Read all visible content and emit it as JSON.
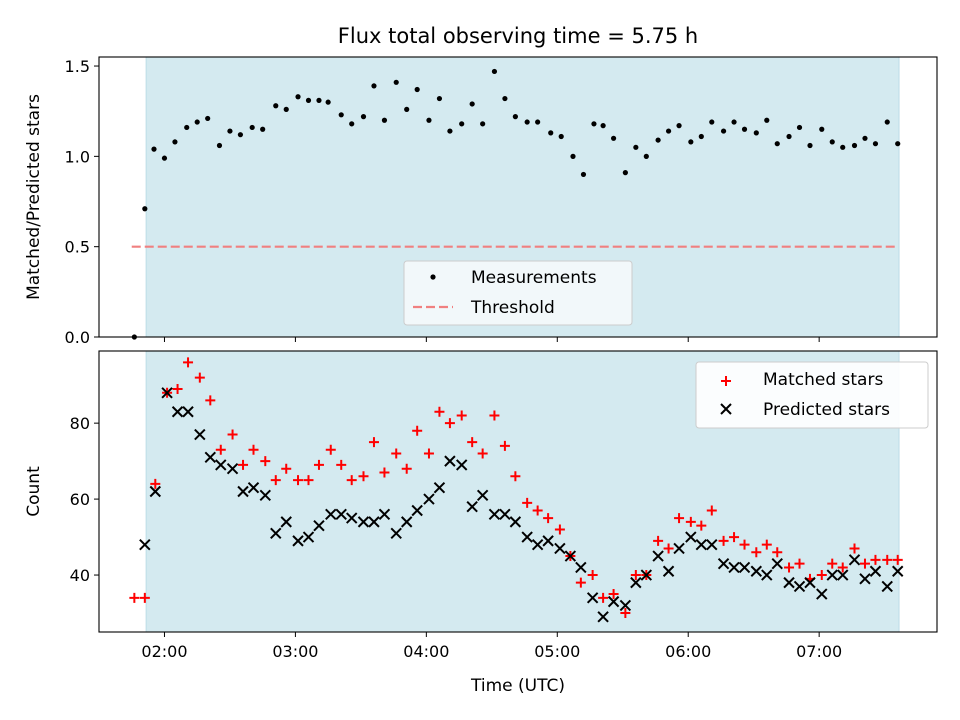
{
  "title": "Flux total observing time = 5.75 h",
  "colors": {
    "background": "#ffffff",
    "shade": "#d4eaf0",
    "threshold": "#f08080",
    "measurement": "#000000",
    "matched": "#ff0000",
    "predicted": "#000000"
  },
  "chart_data": [
    {
      "type": "scatter",
      "ylabel": "Matched/Predicted stars",
      "ylim": [
        0,
        1.55
      ],
      "yticks": [
        0.0,
        0.5,
        1.0,
        1.5
      ],
      "ytick_labels": [
        "0.0",
        "0.5",
        "1.0",
        "1.5"
      ],
      "xlim_hours": [
        1.5,
        7.9
      ],
      "observing_window_hours": [
        1.86,
        7.61
      ],
      "xticks_hours": [
        2,
        3,
        4,
        5,
        6,
        7
      ],
      "legend": {
        "position": "lower-center",
        "entries": [
          "Measurements",
          "Threshold"
        ]
      },
      "threshold": {
        "name": "Threshold",
        "value": 0.5,
        "x_range_hours": [
          1.75,
          7.6
        ]
      },
      "series": [
        {
          "name": "Measurements",
          "marker": "dot",
          "x_hours": [
            1.77,
            1.85,
            1.92,
            2.0,
            2.08,
            2.17,
            2.25,
            2.33,
            2.42,
            2.5,
            2.58,
            2.67,
            2.75,
            2.85,
            2.93,
            3.02,
            3.1,
            3.18,
            3.25,
            3.35,
            3.43,
            3.52,
            3.6,
            3.68,
            3.77,
            3.85,
            3.93,
            4.02,
            4.1,
            4.18,
            4.27,
            4.35,
            4.43,
            4.52,
            4.6,
            4.68,
            4.77,
            4.85,
            4.95,
            5.03,
            5.12,
            5.2,
            5.28,
            5.35,
            5.43,
            5.52,
            5.6,
            5.68,
            5.77,
            5.85,
            5.93,
            6.02,
            6.1,
            6.18,
            6.27,
            6.35,
            6.43,
            6.52,
            6.6,
            6.68,
            6.77,
            6.85,
            6.93,
            7.02,
            7.1,
            7.18,
            7.27,
            7.35,
            7.43,
            7.52,
            7.6
          ],
          "values": [
            0.0,
            0.71,
            1.04,
            0.99,
            1.08,
            1.16,
            1.19,
            1.21,
            1.06,
            1.14,
            1.12,
            1.16,
            1.15,
            1.28,
            1.26,
            1.33,
            1.31,
            1.31,
            1.3,
            1.23,
            1.18,
            1.22,
            1.39,
            1.2,
            1.41,
            1.26,
            1.37,
            1.2,
            1.32,
            1.14,
            1.18,
            1.29,
            1.18,
            1.47,
            1.32,
            1.22,
            1.19,
            1.19,
            1.13,
            1.11,
            1.0,
            0.9,
            1.18,
            1.17,
            1.1,
            0.91,
            1.05,
            1.0,
            1.09,
            1.14,
            1.17,
            1.08,
            1.11,
            1.19,
            1.14,
            1.19,
            1.15,
            1.13,
            1.2,
            1.07,
            1.11,
            1.16,
            1.06,
            1.15,
            1.08,
            1.05,
            1.06,
            1.1,
            1.07,
            1.19,
            1.07
          ]
        }
      ]
    },
    {
      "type": "scatter",
      "xlabel": "Time (UTC)",
      "ylabel": "Count",
      "ylim": [
        25,
        99
      ],
      "yticks": [
        40,
        60,
        80
      ],
      "ytick_labels": [
        "40",
        "60",
        "80"
      ],
      "xlim_hours": [
        1.5,
        7.9
      ],
      "observing_window_hours": [
        1.86,
        7.61
      ],
      "xticks_hours": [
        2,
        3,
        4,
        5,
        6,
        7
      ],
      "xtick_labels": [
        "02:00",
        "03:00",
        "04:00",
        "05:00",
        "06:00",
        "07:00"
      ],
      "legend": {
        "position": "top-right",
        "entries": [
          "Matched stars",
          "Predicted stars"
        ]
      },
      "series": [
        {
          "name": "Matched stars",
          "marker": "plus",
          "x_hours": [
            1.77,
            1.85,
            1.93,
            2.02,
            2.1,
            2.18,
            2.27,
            2.35,
            2.43,
            2.52,
            2.6,
            2.68,
            2.77,
            2.85,
            2.93,
            3.02,
            3.1,
            3.18,
            3.27,
            3.35,
            3.43,
            3.52,
            3.6,
            3.68,
            3.77,
            3.85,
            3.93,
            4.02,
            4.1,
            4.18,
            4.27,
            4.35,
            4.43,
            4.52,
            4.6,
            4.68,
            4.77,
            4.85,
            4.93,
            5.02,
            5.1,
            5.18,
            5.27,
            5.35,
            5.43,
            5.52,
            5.6,
            5.68,
            5.77,
            5.85,
            5.93,
            6.02,
            6.1,
            6.18,
            6.27,
            6.35,
            6.43,
            6.52,
            6.6,
            6.68,
            6.77,
            6.85,
            6.93,
            7.02,
            7.1,
            7.18,
            7.27,
            7.35,
            7.43,
            7.52,
            7.6
          ],
          "values": [
            34,
            34,
            64,
            88,
            89,
            96,
            92,
            86,
            73,
            77,
            69,
            73,
            70,
            65,
            68,
            65,
            65,
            69,
            73,
            69,
            65,
            66,
            75,
            67,
            72,
            68,
            78,
            72,
            83,
            80,
            82,
            75,
            72,
            82,
            74,
            66,
            59,
            57,
            55,
            52,
            45,
            38,
            40,
            34,
            35,
            30,
            40,
            40,
            49,
            47,
            55,
            54,
            53,
            57,
            49,
            50,
            48,
            46,
            48,
            46,
            42,
            43,
            39,
            40,
            43,
            42,
            47,
            43,
            44,
            44,
            44
          ],
          "labels_x_marker": false
        },
        {
          "name": "Predicted stars",
          "marker": "x",
          "x_hours": [
            1.85,
            1.93,
            2.02,
            2.1,
            2.18,
            2.27,
            2.35,
            2.43,
            2.52,
            2.6,
            2.68,
            2.77,
            2.85,
            2.93,
            3.02,
            3.1,
            3.18,
            3.27,
            3.35,
            3.43,
            3.52,
            3.6,
            3.68,
            3.77,
            3.85,
            3.93,
            4.02,
            4.1,
            4.18,
            4.27,
            4.35,
            4.43,
            4.52,
            4.6,
            4.68,
            4.77,
            4.85,
            4.93,
            5.02,
            5.1,
            5.18,
            5.27,
            5.35,
            5.43,
            5.52,
            5.6,
            5.68,
            5.77,
            5.85,
            5.93,
            6.02,
            6.1,
            6.18,
            6.27,
            6.35,
            6.43,
            6.52,
            6.6,
            6.68,
            6.77,
            6.85,
            6.93,
            7.02,
            7.1,
            7.18,
            7.27,
            7.35,
            7.43,
            7.52,
            7.6
          ],
          "values": [
            48,
            62,
            88,
            83,
            83,
            77,
            71,
            69,
            68,
            62,
            63,
            61,
            51,
            54,
            49,
            50,
            53,
            56,
            56,
            55,
            54,
            54,
            56,
            51,
            54,
            57,
            60,
            63,
            70,
            69,
            58,
            61,
            56,
            56,
            54,
            50,
            48,
            49,
            47,
            45,
            42,
            34,
            29,
            33,
            32,
            38,
            40,
            45,
            41,
            47,
            50,
            48,
            48,
            43,
            42,
            42,
            41,
            40,
            43,
            38,
            37,
            38,
            35,
            40,
            40,
            44,
            39,
            41,
            37,
            41
          ]
        }
      ]
    }
  ]
}
